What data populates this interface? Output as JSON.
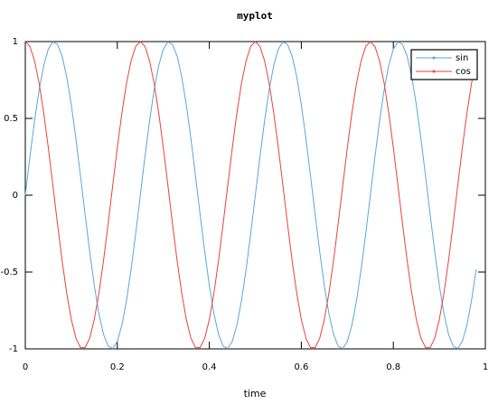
{
  "chart_data": {
    "type": "line",
    "title": "myplot",
    "x_label": "time",
    "x": [
      0,
      0.01,
      0.02,
      0.03,
      0.04,
      0.05,
      0.06,
      0.07,
      0.08,
      0.09,
      0.1,
      0.11,
      0.12,
      0.13,
      0.14,
      0.15,
      0.16,
      0.17,
      0.18,
      0.19,
      0.2,
      0.21,
      0.22,
      0.23,
      0.24,
      0.25,
      0.26,
      0.27,
      0.28,
      0.29,
      0.3,
      0.31,
      0.32,
      0.33,
      0.34,
      0.35,
      0.36,
      0.37,
      0.38,
      0.39,
      0.4,
      0.41,
      0.42,
      0.43,
      0.44,
      0.45,
      0.46,
      0.47,
      0.48,
      0.49,
      0.5,
      0.51,
      0.52,
      0.53,
      0.54,
      0.55,
      0.56,
      0.57,
      0.58,
      0.59,
      0.6,
      0.61,
      0.62,
      0.63,
      0.64,
      0.65,
      0.66,
      0.67,
      0.68,
      0.69,
      0.7,
      0.71,
      0.72,
      0.73,
      0.74,
      0.75,
      0.76,
      0.77,
      0.78,
      0.79,
      0.8,
      0.81,
      0.82,
      0.83,
      0.84,
      0.85,
      0.86,
      0.87,
      0.88,
      0.89,
      0.9,
      0.91,
      0.92,
      0.93,
      0.94,
      0.95,
      0.96,
      0.97,
      0.98
    ],
    "series": [
      {
        "name": "sin",
        "color": "#5aa6d9",
        "values": [
          0,
          0.249,
          0.482,
          0.685,
          0.844,
          0.951,
          0.998,
          0.982,
          0.905,
          0.771,
          0.588,
          0.368,
          0.125,
          -0.125,
          -0.368,
          -0.588,
          -0.771,
          -0.905,
          -0.982,
          -0.998,
          -0.951,
          -0.844,
          -0.685,
          -0.482,
          -0.249,
          0,
          0.249,
          0.482,
          0.685,
          0.844,
          0.951,
          0.998,
          0.982,
          0.905,
          0.771,
          0.588,
          0.368,
          0.125,
          -0.125,
          -0.368,
          -0.588,
          -0.771,
          -0.905,
          -0.982,
          -0.998,
          -0.951,
          -0.844,
          -0.685,
          -0.482,
          -0.249,
          0,
          0.249,
          0.482,
          0.685,
          0.844,
          0.951,
          0.998,
          0.982,
          0.905,
          0.771,
          0.588,
          0.368,
          0.125,
          -0.125,
          -0.368,
          -0.588,
          -0.771,
          -0.905,
          -0.982,
          -0.998,
          -0.951,
          -0.844,
          -0.685,
          -0.482,
          -0.249,
          0,
          0.249,
          0.482,
          0.685,
          0.844,
          0.951,
          0.998,
          0.982,
          0.905,
          0.771,
          0.588,
          0.368,
          0.125,
          -0.125,
          -0.368,
          -0.588,
          -0.771,
          -0.905,
          -0.982,
          -0.998,
          -0.951,
          -0.844,
          -0.685,
          -0.482
        ]
      },
      {
        "name": "cos",
        "color": "#e8423d",
        "values": [
          1,
          0.969,
          0.876,
          0.729,
          0.536,
          0.309,
          0.063,
          -0.187,
          -0.426,
          -0.637,
          -0.809,
          -0.93,
          -0.992,
          -0.992,
          -0.93,
          -0.809,
          -0.637,
          -0.426,
          -0.187,
          0.063,
          0.309,
          0.536,
          0.729,
          0.876,
          0.969,
          1,
          0.969,
          0.876,
          0.729,
          0.536,
          0.309,
          0.063,
          -0.187,
          -0.426,
          -0.637,
          -0.809,
          -0.93,
          -0.992,
          -0.992,
          -0.93,
          -0.809,
          -0.637,
          -0.426,
          -0.187,
          0.063,
          0.309,
          0.536,
          0.729,
          0.876,
          0.969,
          1,
          0.969,
          0.876,
          0.729,
          0.536,
          0.309,
          0.063,
          -0.187,
          -0.426,
          -0.637,
          -0.809,
          -0.93,
          -0.992,
          -0.992,
          -0.93,
          -0.809,
          -0.637,
          -0.426,
          -0.187,
          0.063,
          0.309,
          0.536,
          0.729,
          0.876,
          0.969,
          1,
          0.969,
          0.876,
          0.729,
          0.536,
          0.309,
          0.063,
          -0.187,
          -0.426,
          -0.637,
          -0.809,
          -0.93,
          -0.992,
          -0.992,
          -0.93,
          -0.809,
          -0.637,
          -0.426,
          -0.187,
          0.063,
          0.309,
          0.536,
          0.729,
          0.876
        ]
      }
    ],
    "xlim": [
      0,
      1
    ],
    "xticks": [
      0,
      0.2,
      0.4,
      0.6,
      0.8,
      1
    ],
    "ylim": [
      -1,
      1
    ],
    "yticks": [
      -1,
      -0.5,
      0,
      0.5,
      1
    ],
    "legend": "northeast"
  }
}
